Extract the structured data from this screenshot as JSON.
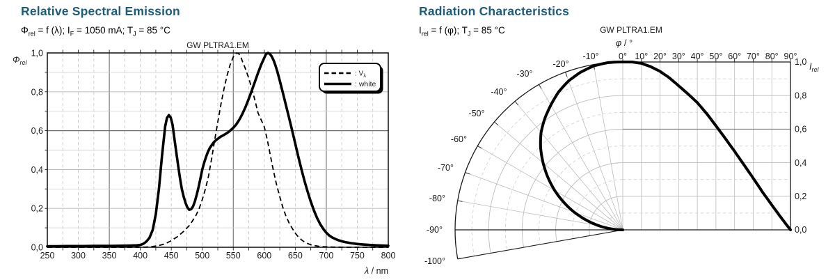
{
  "page": {
    "background": "#ffffff",
    "accent_title_color": "#1d5b7b",
    "watermark_color": "#c6c6c6"
  },
  "left_chart": {
    "title": "Relative Spectral Emission",
    "subtitle_tokens": [
      [
        "Φ",
        "n"
      ],
      [
        "rel",
        "s"
      ],
      [
        " = f (λ); I",
        "n"
      ],
      [
        "F",
        "s"
      ],
      [
        " = 1050 mA; T",
        "n"
      ],
      [
        "J",
        "s"
      ],
      [
        " = 85 °C",
        "n"
      ]
    ],
    "watermark": "GW PLTRA1.EM",
    "y_axis_label": {
      "main": "Φ",
      "sub": "rel"
    },
    "x_axis_label": {
      "italic": "λ",
      "rest": " / nm"
    },
    "x_tick_labels": [
      "250",
      "300",
      "350",
      "400",
      "450",
      "500",
      "550",
      "600",
      "650",
      "700",
      "750",
      "800"
    ],
    "y_tick_labels": [
      "1,0",
      "0,8",
      "0,6",
      "0,4",
      "0,2",
      "0,0"
    ],
    "legend": [
      {
        "line": "dashed",
        "prefix": ": V",
        "sub": "λ"
      },
      {
        "line": "solid",
        "prefix": ": white",
        "sub": ""
      }
    ]
  },
  "right_chart": {
    "title": "Radiation Characteristics",
    "subtitle_tokens": [
      [
        "I",
        "n"
      ],
      [
        "rel",
        "s"
      ],
      [
        " = f (φ); T",
        "n"
      ],
      [
        "J",
        "s"
      ],
      [
        " = 85 °C",
        "n"
      ]
    ],
    "watermark": "GW PLTRA1.EM",
    "top_axis_label": {
      "italic": "φ",
      "rest": " / °"
    },
    "scale_label": {
      "main": "I",
      "sub": "rel"
    },
    "top_tick_labels": [
      "0°",
      "10°",
      "20°",
      "30°",
      "40°",
      "50°",
      "60°",
      "70°",
      "80°",
      "90°"
    ],
    "polar_tick_labels": [
      "-10°",
      "-20°",
      "-30°",
      "-40°",
      "-50°",
      "-60°",
      "-70°",
      "-80°",
      "-90°",
      "-100°"
    ],
    "scale_tick_labels": [
      "1,0",
      "0,8",
      "0,6",
      "0,4",
      "0,2",
      "0,0"
    ]
  },
  "chart_data": [
    {
      "type": "line",
      "title": "Relative Spectral Emission",
      "xlabel": "λ / nm",
      "ylabel": "Φrel",
      "xlim": [
        250,
        800
      ],
      "ylim": [
        0,
        1
      ],
      "x_tick_step": 50,
      "x_minor_step": 25,
      "y_tick_step": 0.2,
      "y_minor_step": 0.1,
      "emphasis_gridlines_x": [
        350,
        550,
        700
      ],
      "emphasis_gridlines_y": [
        0.6
      ],
      "grid": true,
      "legend_position": "top-right",
      "series": [
        {
          "name": "Vλ",
          "style": "dashed",
          "points": [
            [
              250,
              0
            ],
            [
              300,
              0
            ],
            [
              350,
              0
            ],
            [
              380,
              0
            ],
            [
              400,
              0.0002
            ],
            [
              410,
              0.001
            ],
            [
              420,
              0.004
            ],
            [
              430,
              0.009
            ],
            [
              440,
              0.018
            ],
            [
              450,
              0.034
            ],
            [
              460,
              0.055
            ],
            [
              470,
              0.082
            ],
            [
              480,
              0.115
            ],
            [
              490,
              0.165
            ],
            [
              495,
              0.2
            ],
            [
              500,
              0.245
            ],
            [
              505,
              0.3
            ],
            [
              510,
              0.365
            ],
            [
              515,
              0.455
            ],
            [
              520,
              0.55
            ],
            [
              525,
              0.645
            ],
            [
              530,
              0.735
            ],
            [
              535,
              0.815
            ],
            [
              540,
              0.885
            ],
            [
              545,
              0.94
            ],
            [
              550,
              0.98
            ],
            [
              553,
              0.995
            ],
            [
              556,
              1.0
            ],
            [
              559,
              0.995
            ],
            [
              562,
              0.98
            ],
            [
              565,
              0.955
            ],
            [
              570,
              0.915
            ],
            [
              575,
              0.87
            ],
            [
              580,
              0.815
            ],
            [
              585,
              0.755
            ],
            [
              590,
              0.69
            ],
            [
              595,
              0.655
            ],
            [
              600,
              0.62
            ],
            [
              605,
              0.55
            ],
            [
              610,
              0.47
            ],
            [
              615,
              0.39
            ],
            [
              620,
              0.32
            ],
            [
              625,
              0.26
            ],
            [
              630,
              0.205
            ],
            [
              635,
              0.16
            ],
            [
              640,
              0.125
            ],
            [
              645,
              0.098
            ],
            [
              650,
              0.072
            ],
            [
              655,
              0.053
            ],
            [
              660,
              0.038
            ],
            [
              665,
              0.027
            ],
            [
              670,
              0.019
            ],
            [
              675,
              0.013
            ],
            [
              680,
              0.009
            ],
            [
              690,
              0.004
            ],
            [
              700,
              0.002
            ],
            [
              710,
              0.001
            ],
            [
              730,
              0.0005
            ],
            [
              760,
              0.0002
            ],
            [
              800,
              0.0001
            ]
          ]
        },
        {
          "name": "white",
          "style": "solid",
          "points": [
            [
              250,
              0.005
            ],
            [
              265,
              0.005
            ],
            [
              280,
              0.006
            ],
            [
              295,
              0.006
            ],
            [
              310,
              0.006
            ],
            [
              325,
              0.007
            ],
            [
              340,
              0.007
            ],
            [
              355,
              0.007
            ],
            [
              370,
              0.008
            ],
            [
              385,
              0.009
            ],
            [
              395,
              0.01
            ],
            [
              400,
              0.012
            ],
            [
              405,
              0.018
            ],
            [
              410,
              0.03
            ],
            [
              415,
              0.05
            ],
            [
              420,
              0.09
            ],
            [
              425,
              0.17
            ],
            [
              430,
              0.3
            ],
            [
              435,
              0.47
            ],
            [
              440,
              0.62
            ],
            [
              443,
              0.665
            ],
            [
              446,
              0.68
            ],
            [
              449,
              0.668
            ],
            [
              452,
              0.63
            ],
            [
              455,
              0.56
            ],
            [
              458,
              0.49
            ],
            [
              461,
              0.42
            ],
            [
              464,
              0.355
            ],
            [
              467,
              0.3
            ],
            [
              470,
              0.26
            ],
            [
              473,
              0.228
            ],
            [
              476,
              0.205
            ],
            [
              479,
              0.193
            ],
            [
              482,
              0.196
            ],
            [
              485,
              0.21
            ],
            [
              488,
              0.235
            ],
            [
              491,
              0.27
            ],
            [
              494,
              0.31
            ],
            [
              497,
              0.355
            ],
            [
              500,
              0.4
            ],
            [
              503,
              0.435
            ],
            [
              506,
              0.465
            ],
            [
              509,
              0.49
            ],
            [
              512,
              0.51
            ],
            [
              515,
              0.525
            ],
            [
              518,
              0.538
            ],
            [
              521,
              0.548
            ],
            [
              524,
              0.556
            ],
            [
              527,
              0.563
            ],
            [
              530,
              0.57
            ],
            [
              535,
              0.578
            ],
            [
              540,
              0.588
            ],
            [
              545,
              0.6
            ],
            [
              550,
              0.615
            ],
            [
              555,
              0.633
            ],
            [
              560,
              0.658
            ],
            [
              565,
              0.688
            ],
            [
              570,
              0.724
            ],
            [
              575,
              0.764
            ],
            [
              580,
              0.808
            ],
            [
              585,
              0.853
            ],
            [
              590,
              0.898
            ],
            [
              595,
              0.94
            ],
            [
              600,
              0.975
            ],
            [
              603,
              0.995
            ],
            [
              606,
              1.0
            ],
            [
              609,
              0.995
            ],
            [
              612,
              0.982
            ],
            [
              615,
              0.962
            ],
            [
              618,
              0.935
            ],
            [
              621,
              0.905
            ],
            [
              625,
              0.857
            ],
            [
              630,
              0.795
            ],
            [
              635,
              0.73
            ],
            [
              640,
              0.665
            ],
            [
              645,
              0.6
            ],
            [
              650,
              0.532
            ],
            [
              655,
              0.465
            ],
            [
              660,
              0.4
            ],
            [
              665,
              0.34
            ],
            [
              670,
              0.285
            ],
            [
              675,
              0.235
            ],
            [
              680,
              0.19
            ],
            [
              685,
              0.152
            ],
            [
              690,
              0.12
            ],
            [
              695,
              0.095
            ],
            [
              700,
              0.075
            ],
            [
              705,
              0.06
            ],
            [
              710,
              0.05
            ],
            [
              715,
              0.042
            ],
            [
              720,
              0.036
            ],
            [
              725,
              0.031
            ],
            [
              730,
              0.027
            ],
            [
              740,
              0.021
            ],
            [
              750,
              0.017
            ],
            [
              760,
              0.014
            ],
            [
              770,
              0.012
            ],
            [
              780,
              0.01
            ],
            [
              790,
              0.009
            ],
            [
              800,
              0.008
            ]
          ]
        }
      ]
    },
    {
      "type": "line",
      "variant": "half-polar-cartesian",
      "title": "Radiation Characteristics",
      "xlabel": "φ / °",
      "ylabel": "Irel",
      "polar_angle_range_deg": [
        -100,
        0
      ],
      "cartesian_angle_range_deg": [
        0,
        90
      ],
      "angle_tick_step_deg": 10,
      "r_range": [
        0,
        1
      ],
      "r_tick_step": 0.2,
      "r_minor_step": 0.1,
      "emphasis_gridlines_r": [
        0.6
      ],
      "series": [
        {
          "name": "Irel",
          "angles_deg": [
            0,
            5,
            10,
            15,
            20,
            25,
            30,
            35,
            40,
            45,
            50,
            55,
            60,
            65,
            70,
            75,
            80,
            85,
            90
          ],
          "values": [
            1.0,
            1.0,
            0.992,
            0.972,
            0.944,
            0.906,
            0.858,
            0.81,
            0.758,
            0.693,
            0.62,
            0.545,
            0.468,
            0.388,
            0.308,
            0.225,
            0.148,
            0.072,
            0.0
          ]
        }
      ]
    }
  ]
}
